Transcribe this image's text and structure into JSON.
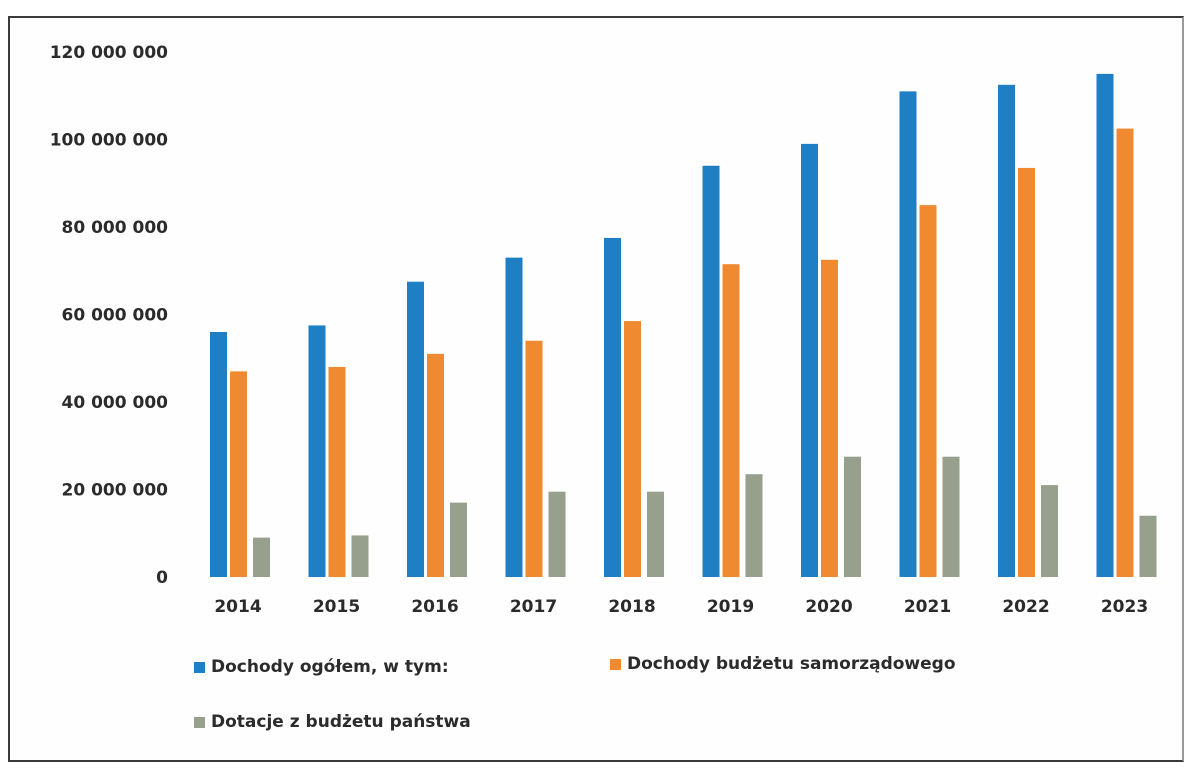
{
  "chart_data": {
    "type": "bar",
    "title": "",
    "xlabel": "",
    "ylabel": "",
    "ylim": [
      0,
      120000000
    ],
    "yticks": [
      0,
      20000000,
      40000000,
      60000000,
      80000000,
      100000000,
      120000000
    ],
    "ytick_labels": [
      "0",
      "20 000 000",
      "40 000 000",
      "60 000 000",
      "80 000 000",
      "100 000 000",
      "120 000 000"
    ],
    "categories": [
      "2014",
      "2015",
      "2016",
      "2017",
      "2018",
      "2019",
      "2020",
      "2021",
      "2022",
      "2023"
    ],
    "grid": false,
    "legend_position": "bottom",
    "series": [
      {
        "name": "Dochody ogółem, w tym:",
        "color": "#1f7fc4",
        "values": [
          56000000,
          57500000,
          67500000,
          73000000,
          77500000,
          94000000,
          99000000,
          111000000,
          112500000,
          115000000
        ]
      },
      {
        "name": "Dochody budżetu samorządowego",
        "color": "#f08a30",
        "values": [
          47000000,
          48000000,
          51000000,
          54000000,
          58500000,
          71500000,
          72500000,
          85000000,
          93500000,
          102500000
        ]
      },
      {
        "name": "Dotacje z budżetu państwa",
        "color": "#96a08c",
        "values": [
          9000000,
          9500000,
          17000000,
          19500000,
          19500000,
          23500000,
          27500000,
          27500000,
          21000000,
          14000000
        ]
      }
    ]
  }
}
